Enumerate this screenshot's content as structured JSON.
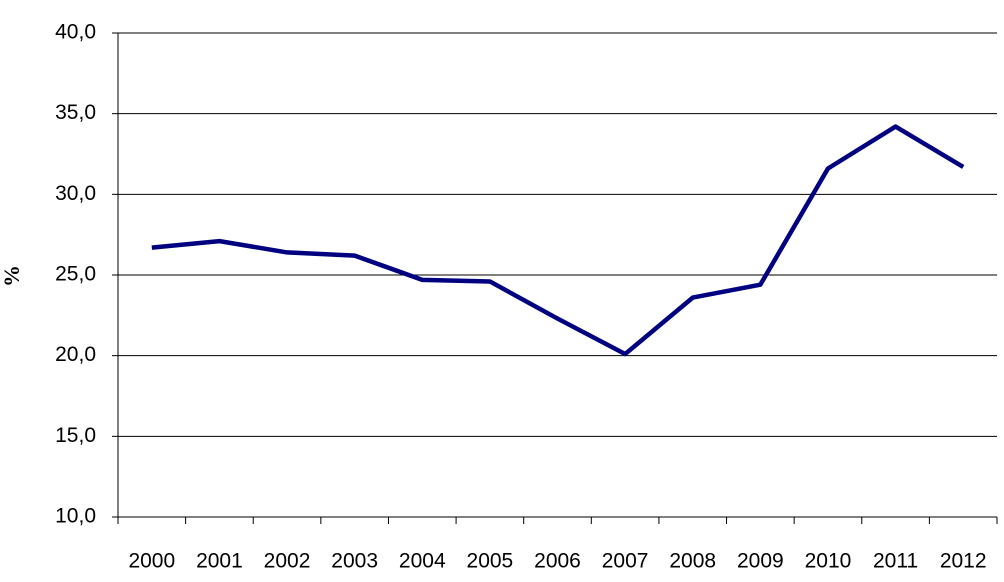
{
  "chart_data": {
    "type": "line",
    "y_label": "%",
    "categories": [
      "2000",
      "2001",
      "2002",
      "2003",
      "2004",
      "2005",
      "2006",
      "2007",
      "2008",
      "2009",
      "2010",
      "2011",
      "2012"
    ],
    "values": [
      26.7,
      27.1,
      26.4,
      26.2,
      24.7,
      24.6,
      22.3,
      20.1,
      23.6,
      24.4,
      31.6,
      34.2,
      31.7
    ],
    "color": "#000080",
    "ylim": [
      10,
      40
    ],
    "yticks": [
      {
        "value": 10,
        "label": "10,0"
      },
      {
        "value": 15,
        "label": "15,0"
      },
      {
        "value": 20,
        "label": "20,0"
      },
      {
        "value": 25,
        "label": "25,0"
      },
      {
        "value": 30,
        "label": "30,0"
      },
      {
        "value": 35,
        "label": "35,0"
      },
      {
        "value": 40,
        "label": "40,0"
      }
    ],
    "grid": true
  }
}
